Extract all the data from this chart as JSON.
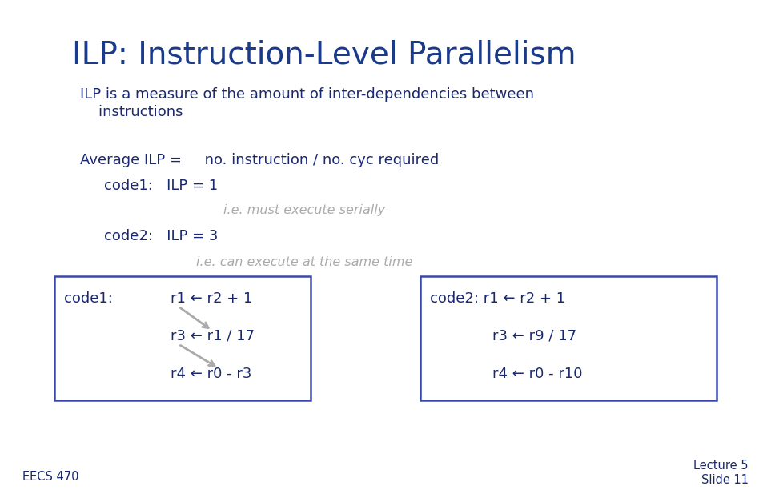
{
  "title": "ILP: Instruction-Level Parallelism",
  "title_color": "#1a3a8a",
  "bg_color": "#ffffff",
  "body_color": "#1a2870",
  "italic_color": "#aaaaaa",
  "box_color": "#3949ab",
  "arrow_color": "#aaaaaa",
  "footer_left": "EECS 470",
  "line1": "ILP is a measure of the amount of inter-dependencies between",
  "line2": "    instructions",
  "avg_label": "Average ILP =",
  "avg_value": "     no. instruction / no. cyc required",
  "code1_ilp": "code1:   ILP = 1",
  "serial_note": "i.e. must execute serially",
  "code2_ilp": "code2:   ILP = 3",
  "parallel_note": "i.e. can execute at the same time",
  "box1_label": "code1:",
  "box1_line1": "r1 ← r2 + 1",
  "box1_line2": "r3 ← r1 / 17",
  "box1_line3": "r4 ← r0 - r3",
  "box2_prefix": "code2:",
  "box2_line1": "r1 ← r2 + 1",
  "box2_line2": "r3 ← r9 / 17",
  "box2_line3": "r4 ← r0 - r10",
  "footer_lecture": "Lecture 5",
  "footer_slide": "Slide 11"
}
